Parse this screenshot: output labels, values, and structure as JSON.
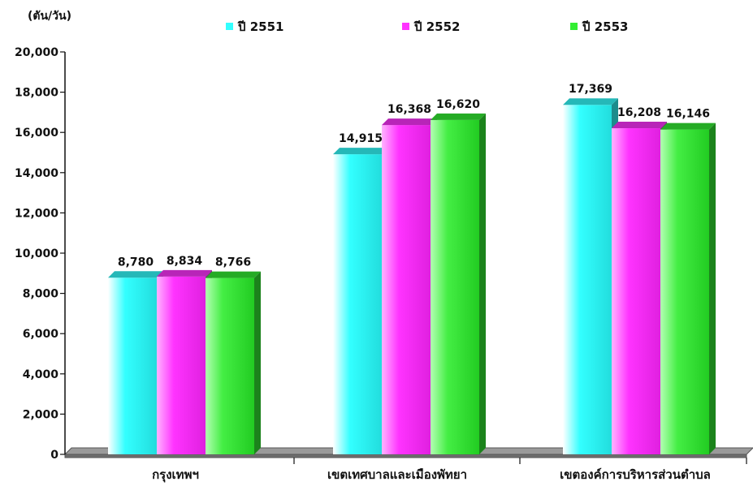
{
  "chart_data": {
    "type": "bar",
    "unit_label": "(ตัน/วัน)",
    "categories": [
      "กรุงเทพฯ",
      "เขตเทศบาลและเมืองพัทยา",
      "เขตองค์การบริหารส่วนตำบล"
    ],
    "series": [
      {
        "name": "ปี 2551",
        "values": [
          8780,
          14915,
          17369
        ],
        "labels": [
          "8,780",
          "14,915",
          "17,369"
        ],
        "color": "#33ffff"
      },
      {
        "name": "ปี 2552",
        "values": [
          8834,
          16368,
          16208
        ],
        "labels": [
          "8,834",
          "16,368",
          "16,208"
        ],
        "color": "#ff33ff"
      },
      {
        "name": "ปี 2553",
        "values": [
          8766,
          16620,
          16146
        ],
        "labels": [
          "8,766",
          "16,620",
          "16,146"
        ],
        "color": "#33ee33"
      }
    ],
    "ylim": [
      0,
      20000
    ],
    "yticks": [
      0,
      2000,
      4000,
      6000,
      8000,
      10000,
      12000,
      14000,
      16000,
      18000,
      20000
    ],
    "ytick_labels": [
      "0",
      "2,000",
      "4,000",
      "6,000",
      "8,000",
      "10,000",
      "12,000",
      "14,000",
      "16,000",
      "18,000",
      "20,000"
    ],
    "grid": false,
    "legend_position": "top",
    "style": "3d-clustered-bar"
  }
}
